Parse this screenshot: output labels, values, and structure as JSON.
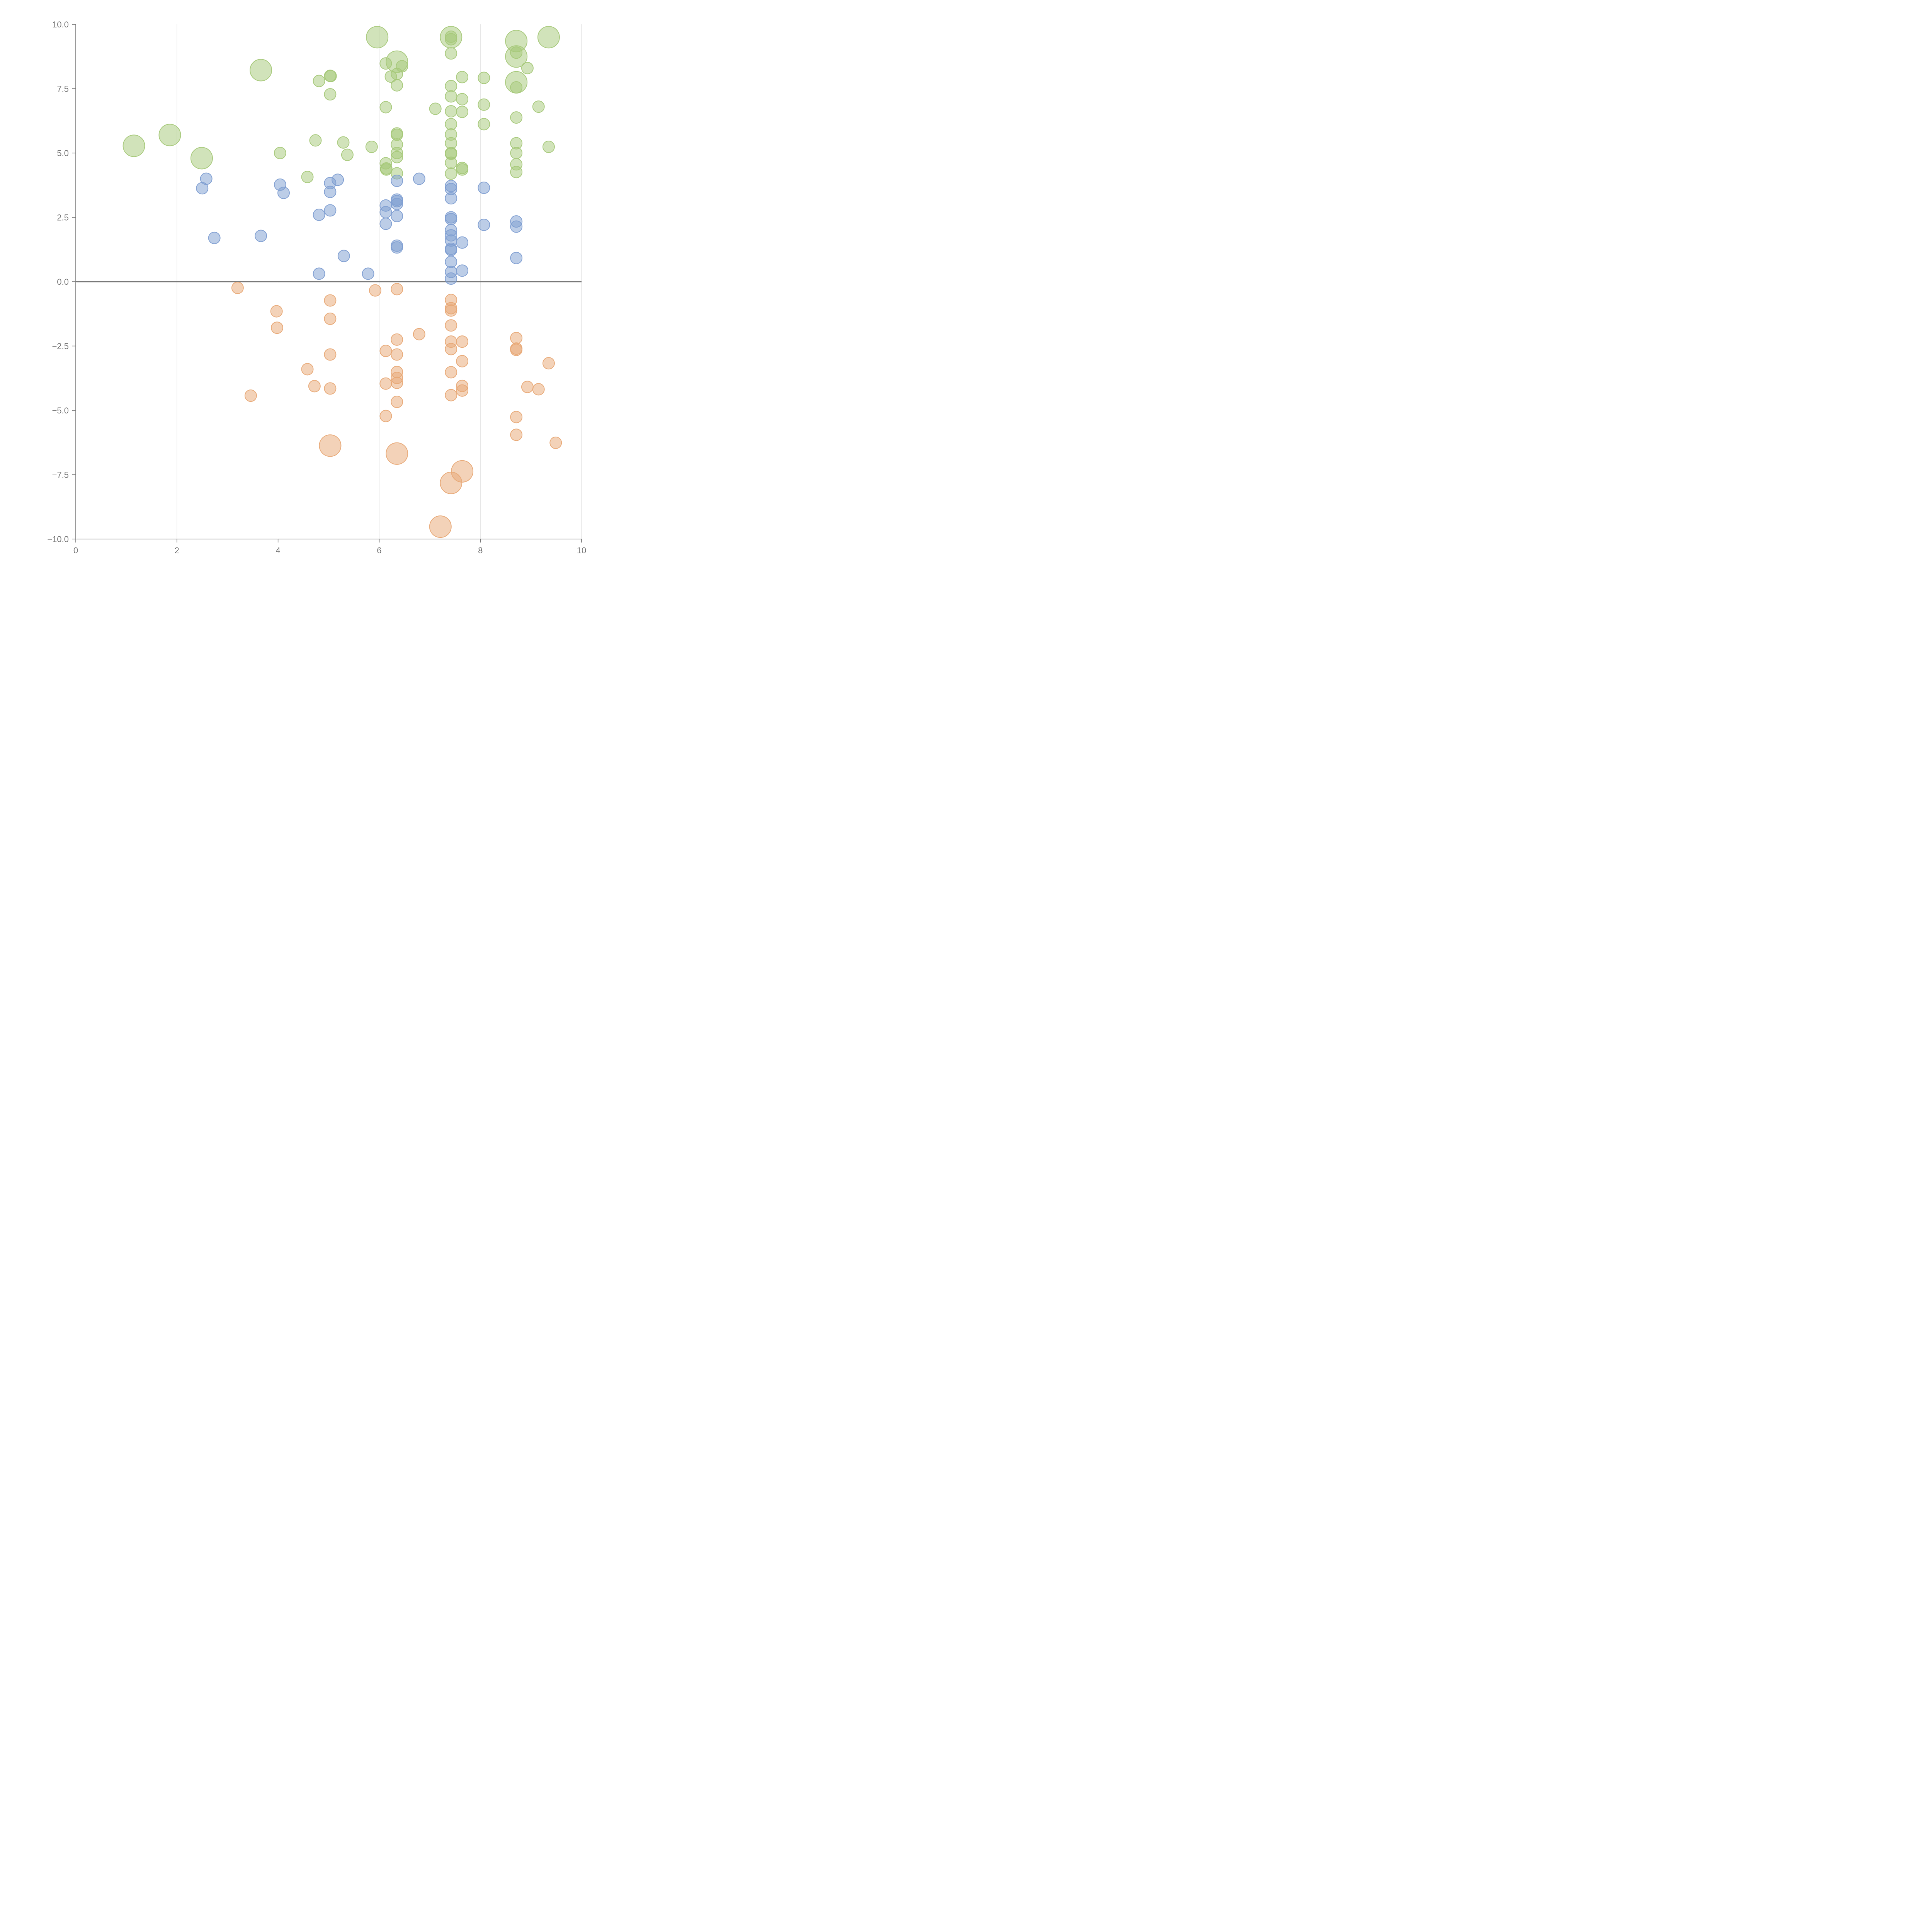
{
  "chart_data": {
    "type": "scatter",
    "title": "",
    "xlabel": "",
    "ylabel": "",
    "xlim": [
      0,
      10
    ],
    "ylim": [
      -10,
      10
    ],
    "x_ticks": [
      0,
      2,
      4,
      6,
      8,
      10
    ],
    "y_ticks": [
      -10,
      -7.5,
      -5,
      -2.5,
      0,
      2.5,
      5,
      7.5,
      10
    ],
    "x_tick_labels": [
      "0",
      "2",
      "4",
      "6",
      "8",
      "10"
    ],
    "y_tick_labels": [
      "−10.0",
      "−7.5",
      "−5.0",
      "−2.5",
      "0.0",
      "2.5",
      "5.0",
      "7.5",
      "10.0"
    ],
    "grid": "vertical",
    "zero_line": true,
    "colors": {
      "green": "#a6c97a",
      "blue": "#7f9fd1",
      "orange": "#e8a877",
      "axis": "#777777"
    },
    "series": [
      {
        "name": "green",
        "color": "#a6c97a",
        "points": [
          [
            1.15,
            5.28,
            2
          ],
          [
            1.86,
            5.7,
            2
          ],
          [
            2.49,
            4.8,
            2
          ],
          [
            3.66,
            8.22,
            2
          ],
          [
            5.96,
            9.5,
            2
          ],
          [
            6.35,
            8.55,
            2
          ],
          [
            7.42,
            9.5,
            2
          ],
          [
            8.71,
            9.35,
            2
          ],
          [
            8.71,
            8.75,
            2
          ],
          [
            8.71,
            7.75,
            2
          ],
          [
            9.35,
            9.5,
            2
          ],
          [
            4.04,
            5.0,
            1
          ],
          [
            4.58,
            4.07,
            1
          ],
          [
            4.74,
            5.49,
            1
          ],
          [
            4.81,
            7.8,
            1
          ],
          [
            5.03,
            8.0,
            1
          ],
          [
            5.04,
            7.99,
            1
          ],
          [
            5.03,
            7.28,
            1
          ],
          [
            5.29,
            5.41,
            1
          ],
          [
            5.37,
            4.93,
            1
          ],
          [
            5.85,
            5.24,
            1
          ],
          [
            6.13,
            8.48,
            1
          ],
          [
            6.13,
            6.78,
            1
          ],
          [
            6.13,
            4.6,
            1
          ],
          [
            6.14,
            4.4,
            1
          ],
          [
            6.14,
            4.36,
            1
          ],
          [
            6.23,
            7.97,
            1
          ],
          [
            6.35,
            8.07,
            1
          ],
          [
            6.35,
            7.63,
            1
          ],
          [
            6.35,
            5.76,
            1
          ],
          [
            6.35,
            5.71,
            1
          ],
          [
            6.35,
            5.33,
            1
          ],
          [
            6.35,
            5.0,
            1
          ],
          [
            6.35,
            4.84,
            1
          ],
          [
            6.35,
            4.21,
            1
          ],
          [
            6.45,
            8.37,
            1
          ],
          [
            7.11,
            6.72,
            1
          ],
          [
            7.42,
            9.52,
            1
          ],
          [
            7.42,
            9.42,
            1
          ],
          [
            7.42,
            8.87,
            1
          ],
          [
            7.42,
            7.6,
            1
          ],
          [
            7.42,
            7.2,
            1
          ],
          [
            7.42,
            6.62,
            1
          ],
          [
            7.42,
            6.12,
            1
          ],
          [
            7.42,
            5.72,
            1
          ],
          [
            7.42,
            5.38,
            1
          ],
          [
            7.42,
            5.0,
            1
          ],
          [
            7.42,
            4.97,
            1
          ],
          [
            7.42,
            4.62,
            1
          ],
          [
            7.42,
            4.2,
            1
          ],
          [
            7.64,
            7.95,
            1
          ],
          [
            7.64,
            7.09,
            1
          ],
          [
            7.64,
            6.6,
            1
          ],
          [
            7.64,
            4.42,
            1
          ],
          [
            7.64,
            4.36,
            1
          ],
          [
            8.07,
            7.92,
            1
          ],
          [
            8.07,
            6.88,
            1
          ],
          [
            8.07,
            6.12,
            1
          ],
          [
            8.71,
            8.9,
            1
          ],
          [
            8.71,
            7.55,
            1
          ],
          [
            8.71,
            6.38,
            1
          ],
          [
            8.71,
            5.38,
            1
          ],
          [
            8.71,
            5.0,
            1
          ],
          [
            8.71,
            4.56,
            1
          ],
          [
            8.71,
            4.26,
            1
          ],
          [
            8.93,
            8.3,
            1
          ],
          [
            9.15,
            6.8,
            1
          ],
          [
            9.35,
            5.24,
            1
          ]
        ]
      },
      {
        "name": "blue",
        "color": "#7f9fd1",
        "points": [
          [
            2.5,
            3.63,
            1
          ],
          [
            2.58,
            4.0,
            1
          ],
          [
            2.74,
            1.7,
            1
          ],
          [
            3.66,
            1.78,
            1
          ],
          [
            4.04,
            3.77,
            1
          ],
          [
            4.11,
            3.45,
            1
          ],
          [
            4.81,
            2.6,
            1
          ],
          [
            4.81,
            0.31,
            1
          ],
          [
            5.03,
            3.83,
            1
          ],
          [
            5.03,
            3.49,
            1
          ],
          [
            5.03,
            2.77,
            1
          ],
          [
            5.18,
            3.96,
            1
          ],
          [
            5.3,
            1.0,
            1
          ],
          [
            5.78,
            0.31,
            1
          ],
          [
            6.13,
            2.96,
            1
          ],
          [
            6.13,
            2.7,
            1
          ],
          [
            6.13,
            2.25,
            1
          ],
          [
            6.35,
            3.92,
            1
          ],
          [
            6.35,
            3.19,
            1
          ],
          [
            6.35,
            3.13,
            1
          ],
          [
            6.35,
            3.02,
            1
          ],
          [
            6.35,
            2.55,
            1
          ],
          [
            6.35,
            1.4,
            1
          ],
          [
            6.35,
            1.33,
            1
          ],
          [
            6.79,
            4.0,
            1
          ],
          [
            7.42,
            3.72,
            1
          ],
          [
            7.42,
            3.6,
            1
          ],
          [
            7.42,
            3.24,
            1
          ],
          [
            7.42,
            2.5,
            1
          ],
          [
            7.42,
            2.43,
            1
          ],
          [
            7.42,
            2.0,
            1
          ],
          [
            7.42,
            1.8,
            1
          ],
          [
            7.42,
            1.6,
            1
          ],
          [
            7.42,
            1.28,
            1
          ],
          [
            7.42,
            1.23,
            1
          ],
          [
            7.42,
            0.77,
            1
          ],
          [
            7.42,
            0.38,
            1
          ],
          [
            7.42,
            0.12,
            1
          ],
          [
            7.64,
            1.52,
            1
          ],
          [
            7.64,
            0.43,
            1
          ],
          [
            8.07,
            3.65,
            1
          ],
          [
            8.07,
            2.21,
            1
          ],
          [
            8.71,
            2.34,
            1
          ],
          [
            8.71,
            2.14,
            1
          ],
          [
            8.71,
            0.92,
            1
          ]
        ]
      },
      {
        "name": "orange",
        "color": "#e8a877",
        "points": [
          [
            3.2,
            -0.24,
            1
          ],
          [
            3.46,
            -4.43,
            1
          ],
          [
            3.97,
            -1.15,
            1
          ],
          [
            3.98,
            -1.79,
            1
          ],
          [
            4.58,
            -3.4,
            1
          ],
          [
            4.72,
            -4.06,
            1
          ],
          [
            5.03,
            -0.73,
            1
          ],
          [
            5.03,
            -1.44,
            1
          ],
          [
            5.03,
            -2.83,
            1
          ],
          [
            5.03,
            -4.15,
            1
          ],
          [
            5.92,
            -0.34,
            1
          ],
          [
            6.13,
            -2.69,
            1
          ],
          [
            6.13,
            -3.96,
            1
          ],
          [
            6.13,
            -5.22,
            1
          ],
          [
            6.35,
            -0.29,
            1
          ],
          [
            6.35,
            -2.25,
            1
          ],
          [
            6.35,
            -2.83,
            1
          ],
          [
            6.35,
            -3.51,
            1
          ],
          [
            6.35,
            -3.74,
            1
          ],
          [
            6.35,
            -3.93,
            1
          ],
          [
            6.35,
            -4.67,
            1
          ],
          [
            6.79,
            -2.04,
            1
          ],
          [
            7.42,
            -0.71,
            1
          ],
          [
            7.42,
            -1.03,
            1
          ],
          [
            7.42,
            -1.12,
            1
          ],
          [
            7.42,
            -1.7,
            1
          ],
          [
            7.42,
            -2.33,
            1
          ],
          [
            7.42,
            -2.62,
            1
          ],
          [
            7.42,
            -3.52,
            1
          ],
          [
            7.42,
            -4.41,
            1
          ],
          [
            7.64,
            -2.33,
            1
          ],
          [
            7.64,
            -3.09,
            1
          ],
          [
            7.64,
            -4.05,
            1
          ],
          [
            7.64,
            -4.23,
            1
          ],
          [
            8.71,
            -2.19,
            1
          ],
          [
            8.71,
            -2.6,
            1
          ],
          [
            8.71,
            -2.65,
            1
          ],
          [
            8.71,
            -5.26,
            1
          ],
          [
            8.71,
            -5.95,
            1
          ],
          [
            8.93,
            -4.09,
            1
          ],
          [
            9.15,
            -4.18,
            1
          ],
          [
            9.35,
            -3.17,
            1
          ],
          [
            9.49,
            -6.26,
            1
          ],
          [
            5.03,
            -6.37,
            2
          ],
          [
            6.35,
            -6.68,
            2
          ],
          [
            7.64,
            -7.37,
            2
          ],
          [
            7.42,
            -7.82,
            2
          ],
          [
            7.21,
            -9.52,
            2
          ]
        ]
      }
    ]
  }
}
